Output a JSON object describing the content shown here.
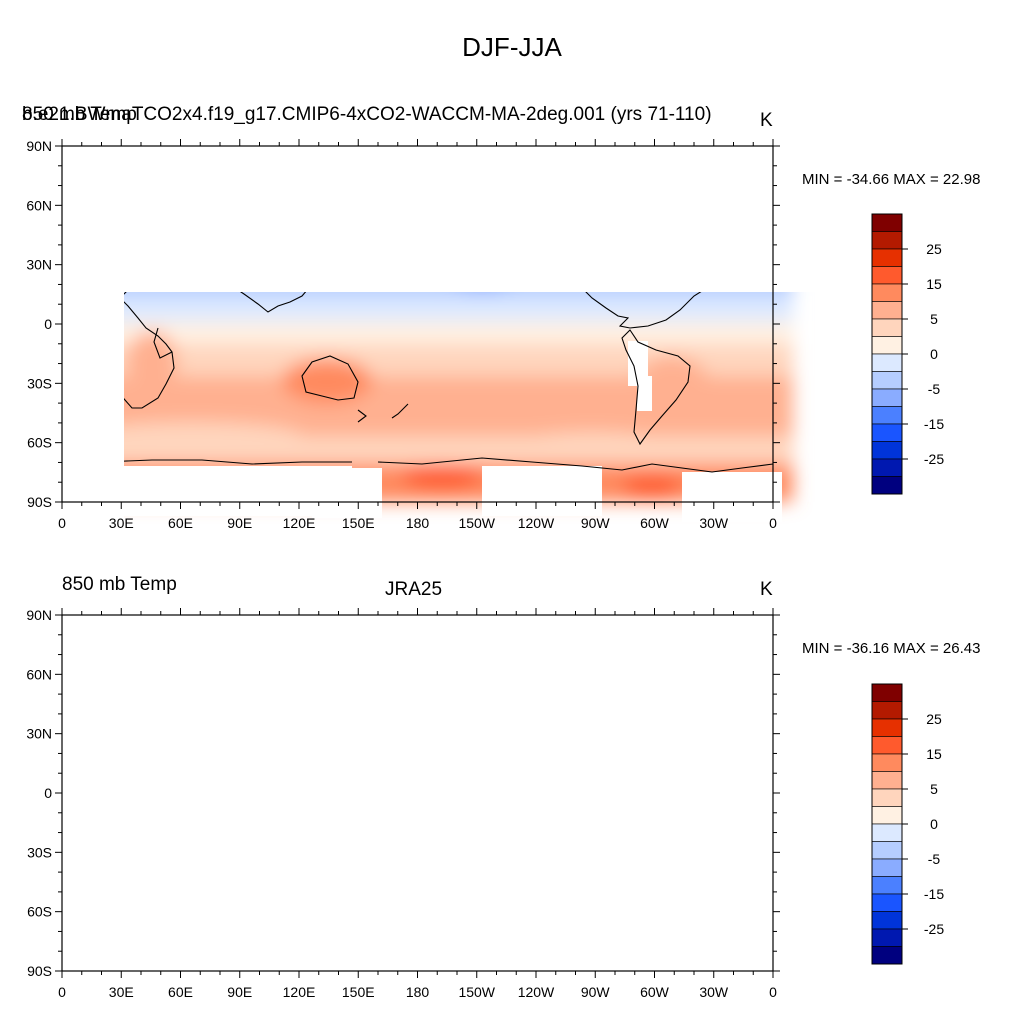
{
  "page_title": "DJF-JJA",
  "palette": [
    "#00007f",
    "#0018b0",
    "#0034d9",
    "#1a55ff",
    "#4b80ff",
    "#8aacff",
    "#b5cdff",
    "#dce9ff",
    "#fff1e3",
    "#ffd5bd",
    "#ffb090",
    "#ff8a5e",
    "#ff5a2d",
    "#e63000",
    "#b31a00",
    "#7f0000"
  ],
  "panels": [
    {
      "variable": "850 mb Temp",
      "case": "b.e21.BWmaTCO2x4.f19_g17.CMIP6-4xCO2-WACCM-MA-2deg.001 (yrs 71-110)",
      "units": "K",
      "min_max": "MIN = -34.66 MAX =  22.98",
      "masked": true
    },
    {
      "variable": "850 mb Temp",
      "case": "JRA25",
      "units": "K",
      "min_max": "MIN = -36.16 MAX =  26.43",
      "masked": false
    }
  ],
  "colorbar_labels": [
    "25",
    "15",
    "5",
    "0",
    "-5",
    "-15",
    "-25"
  ],
  "x_tick_labels": [
    "0",
    "30E",
    "60E",
    "90E",
    "120E",
    "150E",
    "180",
    "150W",
    "120W",
    "90W",
    "60W",
    "30W",
    "0"
  ],
  "y_tick_labels": [
    "90N",
    "60N",
    "30N",
    "0",
    "30S",
    "60S",
    "90S"
  ]
}
